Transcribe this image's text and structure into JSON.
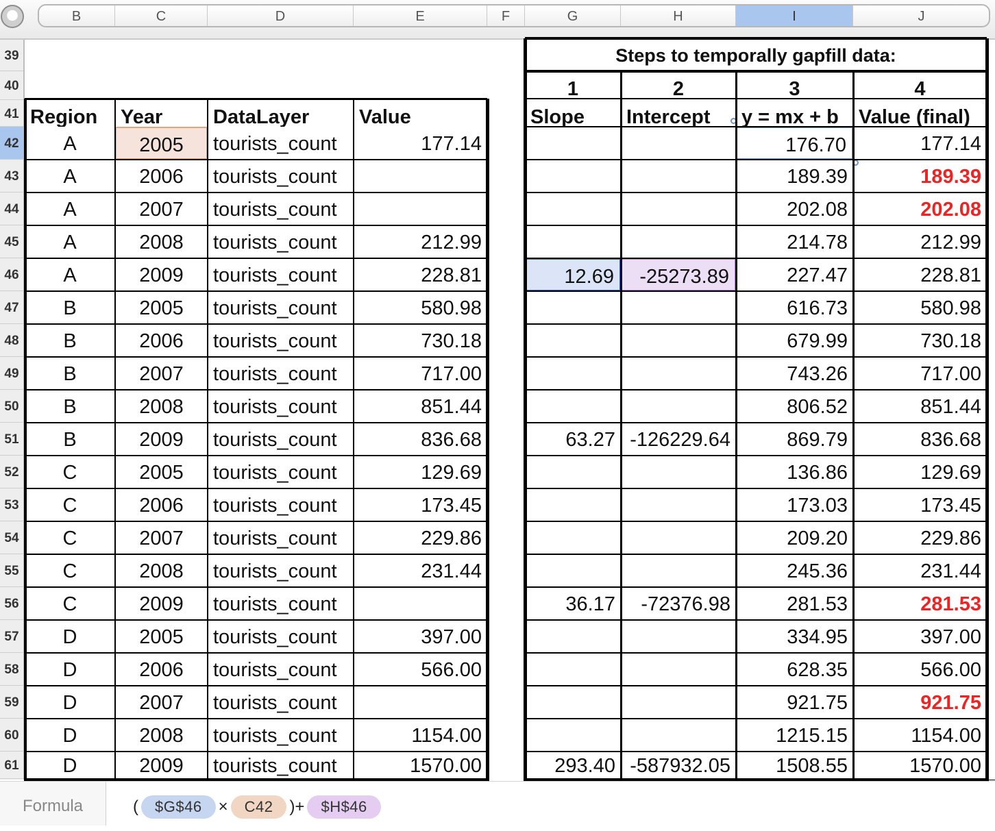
{
  "column_headers": [
    "B",
    "C",
    "D",
    "E",
    "F",
    "G",
    "H",
    "I",
    "J"
  ],
  "selected_column": "I",
  "row_numbers": [
    "39",
    "40",
    "41",
    "42",
    "43",
    "44",
    "45",
    "46",
    "47",
    "48",
    "49",
    "50",
    "51",
    "52",
    "53",
    "54",
    "55",
    "56",
    "57",
    "58",
    "59",
    "60",
    "61"
  ],
  "selected_row": "42",
  "title": "Steps to temporally gapfill data:",
  "step_numbers": [
    "1",
    "2",
    "3",
    "4"
  ],
  "left_headers": [
    "Region",
    "Year",
    "DataLayer",
    "Value"
  ],
  "right_headers": [
    "Slope",
    "Intercept",
    "y = mx + b",
    "Value (final)"
  ],
  "rows": [
    {
      "region": "A",
      "year": "2005",
      "layer": "tourists_count",
      "value": "177.14",
      "slope": "",
      "intercept": "",
      "y": "176.70",
      "final": "177.14",
      "gapfilled": false
    },
    {
      "region": "A",
      "year": "2006",
      "layer": "tourists_count",
      "value": "",
      "slope": "",
      "intercept": "",
      "y": "189.39",
      "final": "189.39",
      "gapfilled": true
    },
    {
      "region": "A",
      "year": "2007",
      "layer": "tourists_count",
      "value": "",
      "slope": "",
      "intercept": "",
      "y": "202.08",
      "final": "202.08",
      "gapfilled": true
    },
    {
      "region": "A",
      "year": "2008",
      "layer": "tourists_count",
      "value": "212.99",
      "slope": "",
      "intercept": "",
      "y": "214.78",
      "final": "212.99",
      "gapfilled": false
    },
    {
      "region": "A",
      "year": "2009",
      "layer": "tourists_count",
      "value": "228.81",
      "slope": "12.69",
      "intercept": "-25273.89",
      "y": "227.47",
      "final": "228.81",
      "gapfilled": false
    },
    {
      "region": "B",
      "year": "2005",
      "layer": "tourists_count",
      "value": "580.98",
      "slope": "",
      "intercept": "",
      "y": "616.73",
      "final": "580.98",
      "gapfilled": false
    },
    {
      "region": "B",
      "year": "2006",
      "layer": "tourists_count",
      "value": "730.18",
      "slope": "",
      "intercept": "",
      "y": "679.99",
      "final": "730.18",
      "gapfilled": false
    },
    {
      "region": "B",
      "year": "2007",
      "layer": "tourists_count",
      "value": "717.00",
      "slope": "",
      "intercept": "",
      "y": "743.26",
      "final": "717.00",
      "gapfilled": false
    },
    {
      "region": "B",
      "year": "2008",
      "layer": "tourists_count",
      "value": "851.44",
      "slope": "",
      "intercept": "",
      "y": "806.52",
      "final": "851.44",
      "gapfilled": false
    },
    {
      "region": "B",
      "year": "2009",
      "layer": "tourists_count",
      "value": "836.68",
      "slope": "63.27",
      "intercept": "-126229.64",
      "y": "869.79",
      "final": "836.68",
      "gapfilled": false
    },
    {
      "region": "C",
      "year": "2005",
      "layer": "tourists_count",
      "value": "129.69",
      "slope": "",
      "intercept": "",
      "y": "136.86",
      "final": "129.69",
      "gapfilled": false
    },
    {
      "region": "C",
      "year": "2006",
      "layer": "tourists_count",
      "value": "173.45",
      "slope": "",
      "intercept": "",
      "y": "173.03",
      "final": "173.45",
      "gapfilled": false
    },
    {
      "region": "C",
      "year": "2007",
      "layer": "tourists_count",
      "value": "229.86",
      "slope": "",
      "intercept": "",
      "y": "209.20",
      "final": "229.86",
      "gapfilled": false
    },
    {
      "region": "C",
      "year": "2008",
      "layer": "tourists_count",
      "value": "231.44",
      "slope": "",
      "intercept": "",
      "y": "245.36",
      "final": "231.44",
      "gapfilled": false
    },
    {
      "region": "C",
      "year": "2009",
      "layer": "tourists_count",
      "value": "",
      "slope": "36.17",
      "intercept": "-72376.98",
      "y": "281.53",
      "final": "281.53",
      "gapfilled": true
    },
    {
      "region": "D",
      "year": "2005",
      "layer": "tourists_count",
      "value": "397.00",
      "slope": "",
      "intercept": "",
      "y": "334.95",
      "final": "397.00",
      "gapfilled": false
    },
    {
      "region": "D",
      "year": "2006",
      "layer": "tourists_count",
      "value": "566.00",
      "slope": "",
      "intercept": "",
      "y": "628.35",
      "final": "566.00",
      "gapfilled": false
    },
    {
      "region": "D",
      "year": "2007",
      "layer": "tourists_count",
      "value": "",
      "slope": "",
      "intercept": "",
      "y": "921.75",
      "final": "921.75",
      "gapfilled": true
    },
    {
      "region": "D",
      "year": "2008",
      "layer": "tourists_count",
      "value": "1154.00",
      "slope": "",
      "intercept": "",
      "y": "1215.15",
      "final": "1154.00",
      "gapfilled": false
    },
    {
      "region": "D",
      "year": "2009",
      "layer": "tourists_count",
      "value": "1570.00",
      "slope": "293.40",
      "intercept": "-587932.05",
      "y": "1508.55",
      "final": "1570.00",
      "gapfilled": false
    }
  ],
  "formula_bar": {
    "label": "Formula",
    "open_paren": "(",
    "token_slope": "$G$46",
    "times": "×",
    "token_year": "C42",
    "close_plus": ")+",
    "token_intercept": "$H$46"
  },
  "colors": {
    "gapfill_text": "#ee2424",
    "selection_blue": "#a9c6ef",
    "slope_ref": "#c6d6f1",
    "year_ref": "#f1d6c4",
    "intercept_ref": "#e4cdf0"
  }
}
